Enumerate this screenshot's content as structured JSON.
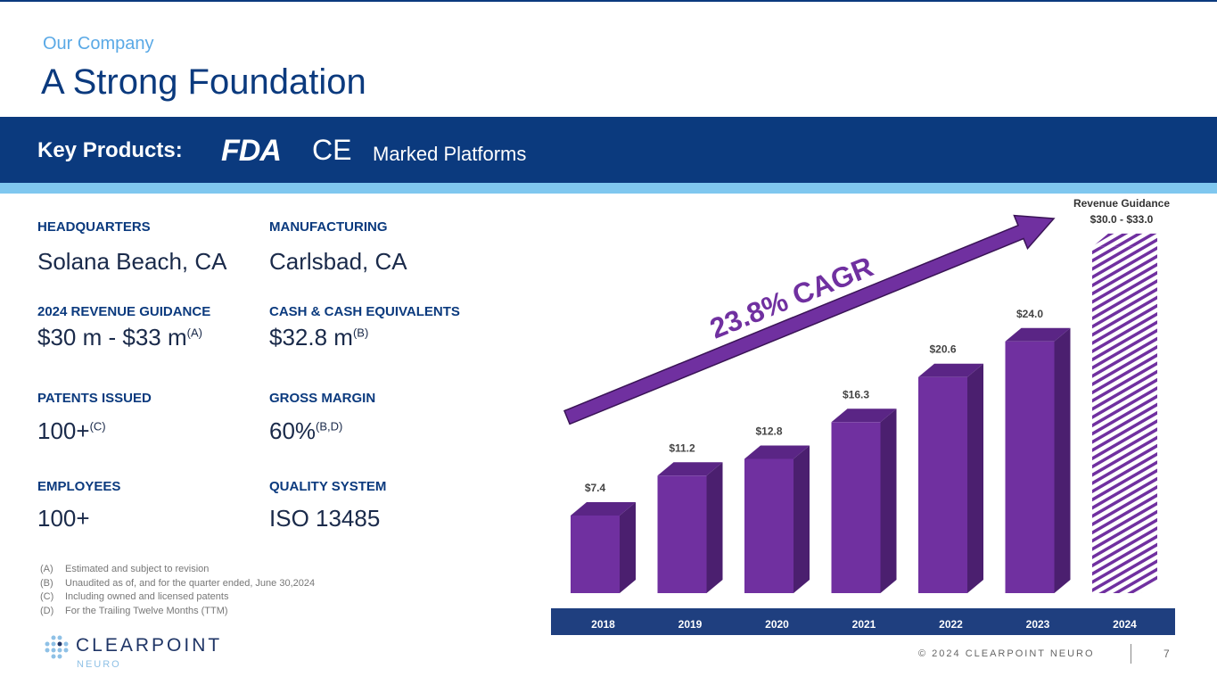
{
  "header": {
    "kicker": "Our Company",
    "title": "A Strong Foundation"
  },
  "band": {
    "key_products": "Key Products:",
    "fda": "FDA",
    "ce": "CE",
    "marked": "Marked Platforms"
  },
  "facts": [
    {
      "label": "HEADQUARTERS",
      "value": "Solana Beach, CA",
      "note": ""
    },
    {
      "label": "MANUFACTURING",
      "value": "Carlsbad, CA",
      "note": ""
    },
    {
      "label": "2024 REVENUE GUIDANCE",
      "value": "$30 m - $33 m",
      "note": "(A)"
    },
    {
      "label": "CASH & CASH EQUIVALENTS",
      "value": "$32.8 m",
      "note": "(B)"
    },
    {
      "label": "PATENTS ISSUED",
      "value": "100+",
      "note": "(C)"
    },
    {
      "label": "GROSS MARGIN",
      "value": "60%",
      "note": "(B,D)"
    },
    {
      "label": "EMPLOYEES",
      "value": "100+",
      "note": ""
    },
    {
      "label": "QUALITY SYSTEM",
      "value": "ISO 13485",
      "note": ""
    }
  ],
  "footnotes": [
    {
      "key": "(A)",
      "text": "Estimated and subject to revision"
    },
    {
      "key": "(B)",
      "text": "Unaudited as of, and for the quarter ended, June 30,2024"
    },
    {
      "key": "(C)",
      "text": "Including owned and licensed patents"
    },
    {
      "key": "(D)",
      "text": "For the Trailing Twelve Months (TTM)"
    }
  ],
  "logo": {
    "name": "CLEARPOINT",
    "sub": "NEURO"
  },
  "footer": {
    "copyright": "© 2024 CLEARPOINT NEURO",
    "page": "7"
  },
  "chart_data": {
    "type": "bar",
    "categories": [
      "2018",
      "2019",
      "2020",
      "2021",
      "2022",
      "2023",
      "2024"
    ],
    "values": [
      7.4,
      11.2,
      12.8,
      16.3,
      20.6,
      24.0,
      33.0
    ],
    "data_labels": [
      "$7.4",
      "$11.2",
      "$12.8",
      "$16.3",
      "$20.6",
      "$24.0",
      ""
    ],
    "guidance_label": "Revenue Guidance",
    "guidance_range": "$30.0 - $33.0",
    "guidance_range_values": [
      30.0,
      33.0
    ],
    "annotation": "23.8% CAGR",
    "colors": {
      "bar": "#7030a0",
      "bar_side": "#4b1f6f",
      "bar_top": "#5a2585",
      "axis_band": "#1f3f7f",
      "guidance_hatch": "#7030a0"
    },
    "ylim": [
      0,
      34
    ]
  }
}
